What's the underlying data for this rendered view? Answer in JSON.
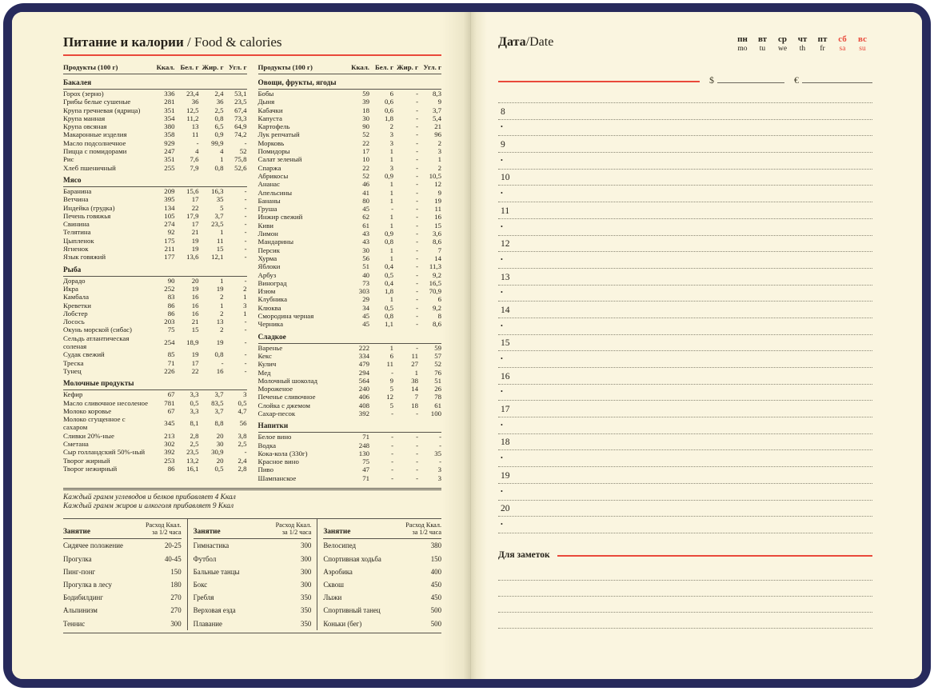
{
  "colors": {
    "cover_navy": "#272a5c",
    "page_cream": "#f9f3d9",
    "accent_red": "#e9493b",
    "ink": "#26221a",
    "rule_line": "#57534a",
    "dotted_line": "#8b8875"
  },
  "left_page": {
    "title_ru": "Питание и калории",
    "title_en": "/ Food & calories",
    "food_header": {
      "product": "Продукты (100 г)",
      "kcal": "Ккал.",
      "protein": "Бел. г",
      "fat": "Жир. г",
      "carb": "Угл. г"
    },
    "columns": [
      {
        "sections": [
          {
            "title": "Бакалея",
            "rows": [
              [
                "Горох (зерно)",
                "336",
                "23,4",
                "2,4",
                "53,1"
              ],
              [
                "Грибы белые сушеные",
                "281",
                "36",
                "36",
                "23,5"
              ],
              [
                "Крупа гречневая (ядрица)",
                "351",
                "12,5",
                "2,5",
                "67,4"
              ],
              [
                "Крупа манная",
                "354",
                "11,2",
                "0,8",
                "73,3"
              ],
              [
                "Крупа овсяная",
                "380",
                "13",
                "6,5",
                "64,9"
              ],
              [
                "Макаронные изделия",
                "358",
                "11",
                "0,9",
                "74,2"
              ],
              [
                "Масло подсолнечное",
                "929",
                "-",
                "99,9",
                "-"
              ],
              [
                "Пицца с помидорами",
                "247",
                "4",
                "4",
                "52"
              ],
              [
                "Рис",
                "351",
                "7,6",
                "1",
                "75,8"
              ],
              [
                "Хлеб пшеничный",
                "255",
                "7,9",
                "0,8",
                "52,6"
              ]
            ]
          },
          {
            "title": "Мясо",
            "rows": [
              [
                "Баранина",
                "209",
                "15,6",
                "16,3",
                "-"
              ],
              [
                "Ветчина",
                "395",
                "17",
                "35",
                "-"
              ],
              [
                "Индейка (грудка)",
                "134",
                "22",
                "5",
                "-"
              ],
              [
                "Печень говяжья",
                "105",
                "17,9",
                "3,7",
                "-"
              ],
              [
                "Свинина",
                "274",
                "17",
                "23,5",
                "-"
              ],
              [
                "Телятина",
                "92",
                "21",
                "1",
                "-"
              ],
              [
                "Цыпленок",
                "175",
                "19",
                "11",
                "-"
              ],
              [
                "Ягненок",
                "211",
                "19",
                "15",
                "-"
              ],
              [
                "Язык говяжий",
                "177",
                "13,6",
                "12,1",
                "-"
              ]
            ]
          },
          {
            "title": "Рыба",
            "rows": [
              [
                "Дорадо",
                "90",
                "20",
                "1",
                "-"
              ],
              [
                "Икра",
                "252",
                "19",
                "19",
                "2"
              ],
              [
                "Камбала",
                "83",
                "16",
                "2",
                "1"
              ],
              [
                "Креветки",
                "86",
                "16",
                "1",
                "3"
              ],
              [
                "Лобстер",
                "86",
                "16",
                "2",
                "1"
              ],
              [
                "Лосось",
                "203",
                "21",
                "13",
                "-"
              ],
              [
                "Окунь морской (сибас)",
                "75",
                "15",
                "2",
                "-"
              ],
              [
                "Сельдь атлантическая соленая",
                "254",
                "18,9",
                "19",
                "-"
              ],
              [
                "Судак свежий",
                "85",
                "19",
                "0,8",
                "-"
              ],
              [
                "Треска",
                "71",
                "17",
                "-",
                "-"
              ],
              [
                "Тунец",
                "226",
                "22",
                "16",
                "-"
              ]
            ]
          },
          {
            "title": "Молочные продукты",
            "rows": [
              [
                "Кефир",
                "67",
                "3,3",
                "3,7",
                "3"
              ],
              [
                "Масло сливочное несоленое",
                "781",
                "0,5",
                "83,5",
                "0,5"
              ],
              [
                "Молоко коровье",
                "67",
                "3,3",
                "3,7",
                "4,7"
              ],
              [
                "Молоко сгущенное с сахаром",
                "345",
                "8,1",
                "8,8",
                "56"
              ],
              [
                "Сливки 20%-ные",
                "213",
                "2,8",
                "20",
                "3,8"
              ],
              [
                "Сметана",
                "302",
                "2,5",
                "30",
                "2,5"
              ],
              [
                "Сыр голландский 50%-ный",
                "392",
                "23,5",
                "30,9",
                "-"
              ],
              [
                "Творог жирный",
                "253",
                "13,2",
                "20",
                "2,4"
              ],
              [
                "Творог нежирный",
                "86",
                "16,1",
                "0,5",
                "2,8"
              ]
            ]
          }
        ]
      },
      {
        "sections": [
          {
            "title": "Овощи, фрукты, ягоды",
            "rows": [
              [
                "Бобы",
                "59",
                "6",
                "-",
                "8,3"
              ],
              [
                "Дыня",
                "39",
                "0,6",
                "-",
                "9"
              ],
              [
                "Кабачки",
                "18",
                "0,6",
                "-",
                "3,7"
              ],
              [
                "Капуста",
                "30",
                "1,8",
                "-",
                "5,4"
              ],
              [
                "Картофель",
                "90",
                "2",
                "-",
                "21"
              ],
              [
                "Лук репчатый",
                "52",
                "3",
                "-",
                "96"
              ],
              [
                "Морковь",
                "22",
                "3",
                "-",
                "2"
              ],
              [
                "Помидоры",
                "17",
                "1",
                "-",
                "3"
              ],
              [
                "Салат зеленый",
                "10",
                "1",
                "-",
                "1"
              ],
              [
                "Спаржа",
                "22",
                "3",
                "-",
                "2"
              ],
              [
                "Абрикосы",
                "52",
                "0,9",
                "-",
                "10,5"
              ],
              [
                "Ананас",
                "46",
                "1",
                "-",
                "12"
              ],
              [
                "Апельсины",
                "41",
                "1",
                "-",
                "9"
              ],
              [
                "Бананы",
                "80",
                "1",
                "-",
                "19"
              ],
              [
                "Груша",
                "45",
                "-",
                "-",
                "11"
              ],
              [
                "Инжир свежий",
                "62",
                "1",
                "-",
                "16"
              ],
              [
                "Киви",
                "61",
                "1",
                "-",
                "15"
              ],
              [
                "Лимон",
                "43",
                "0,9",
                "-",
                "3,6"
              ],
              [
                "Мандарины",
                "43",
                "0,8",
                "-",
                "8,6"
              ],
              [
                "Персик",
                "30",
                "1",
                "-",
                "7"
              ],
              [
                "Хурма",
                "56",
                "1",
                "-",
                "14"
              ],
              [
                "Яблоки",
                "51",
                "0,4",
                "-",
                "11,3"
              ],
              [
                "Арбуз",
                "40",
                "0,5",
                "-",
                "9,2"
              ],
              [
                "Виноград",
                "73",
                "0,4",
                "-",
                "16,5"
              ],
              [
                "Изюм",
                "303",
                "1,8",
                "-",
                "70,9"
              ],
              [
                "Клубника",
                "29",
                "1",
                "-",
                "6"
              ],
              [
                "Клюква",
                "34",
                "0,5",
                "-",
                "9,2"
              ],
              [
                "Смородина черная",
                "45",
                "0,8",
                "-",
                "8"
              ],
              [
                "Черника",
                "45",
                "1,1",
                "-",
                "8,6"
              ]
            ]
          },
          {
            "title": "Сладкое",
            "rows": [
              [
                "Варенье",
                "222",
                "1",
                "-",
                "59"
              ],
              [
                "Кекс",
                "334",
                "6",
                "11",
                "57"
              ],
              [
                "Кулич",
                "479",
                "11",
                "27",
                "52"
              ],
              [
                "Мед",
                "294",
                "-",
                "1",
                "76"
              ],
              [
                "Молочный шоколад",
                "564",
                "9",
                "38",
                "51"
              ],
              [
                "Мороженое",
                "240",
                "5",
                "14",
                "26"
              ],
              [
                "Печенье сливочное",
                "406",
                "12",
                "7",
                "78"
              ],
              [
                "Слойка с джемом",
                "408",
                "5",
                "18",
                "61"
              ],
              [
                "Сахар-песок",
                "392",
                "-",
                "-",
                "100"
              ]
            ]
          },
          {
            "title": "Напитки",
            "rows": [
              [
                "Белое вино",
                "71",
                "-",
                "-",
                "-"
              ],
              [
                "Водка",
                "248",
                "-",
                "-",
                "-"
              ],
              [
                "Кока-кола (330г)",
                "130",
                "-",
                "-",
                "35"
              ],
              [
                "Красное вино",
                "75",
                "-",
                "-",
                "-"
              ],
              [
                "Пиво",
                "47",
                "-",
                "-",
                "3"
              ],
              [
                "Шампанское",
                "71",
                "-",
                "-",
                "3"
              ]
            ]
          }
        ]
      }
    ],
    "notes": [
      "Каждый грамм углеводов и белков прибавляет 4 Ккал",
      "Каждый грамм жиров и алкоголя прибавляет 9 Ккал"
    ],
    "activity_header": {
      "name": "Занятие",
      "value_line1": "Расход Ккал.",
      "value_line2": "за 1/2 часа"
    },
    "activity_columns": [
      [
        [
          "Сидячее положение",
          "20-25"
        ],
        [
          "Прогулка",
          "40-45"
        ],
        [
          "Пинг-понг",
          "150"
        ],
        [
          "Прогулка в лесу",
          "180"
        ],
        [
          "Бодибилдинг",
          "270"
        ],
        [
          "Альпинизм",
          "270"
        ],
        [
          "Теннис",
          "300"
        ]
      ],
      [
        [
          "Гимнастика",
          "300"
        ],
        [
          "Футбол",
          "300"
        ],
        [
          "Бальные танцы",
          "300"
        ],
        [
          "Бокс",
          "300"
        ],
        [
          "Гребля",
          "350"
        ],
        [
          "Верховая езда",
          "350"
        ],
        [
          "Плавание",
          "350"
        ]
      ],
      [
        [
          "Велосипед",
          "380"
        ],
        [
          "Спортивная ходьба",
          "150"
        ],
        [
          "Аэробика",
          "400"
        ],
        [
          "Сквош",
          "450"
        ],
        [
          "Лыжи",
          "450"
        ],
        [
          "Спортивный танец",
          "500"
        ],
        [
          "Коньки (бег)",
          "500"
        ]
      ]
    ]
  },
  "right_page": {
    "date_label_ru": "Дата",
    "date_label_en": "/Date",
    "weekdays": [
      {
        "ru": "пн",
        "en": "mo",
        "weekend": false
      },
      {
        "ru": "вт",
        "en": "tu",
        "weekend": false
      },
      {
        "ru": "ср",
        "en": "we",
        "weekend": false
      },
      {
        "ru": "чт",
        "en": "th",
        "weekend": false
      },
      {
        "ru": "пт",
        "en": "fr",
        "weekend": false
      },
      {
        "ru": "сб",
        "en": "sa",
        "weekend": true
      },
      {
        "ru": "вс",
        "en": "su",
        "weekend": true
      }
    ],
    "currency": [
      "$",
      "€"
    ],
    "hours": [
      "8",
      "9",
      "10",
      "11",
      "12",
      "13",
      "14",
      "15",
      "16",
      "17",
      "18",
      "19",
      "20"
    ],
    "bullet": "•",
    "notes_label": "Для заметок",
    "note_line_count": 4
  }
}
